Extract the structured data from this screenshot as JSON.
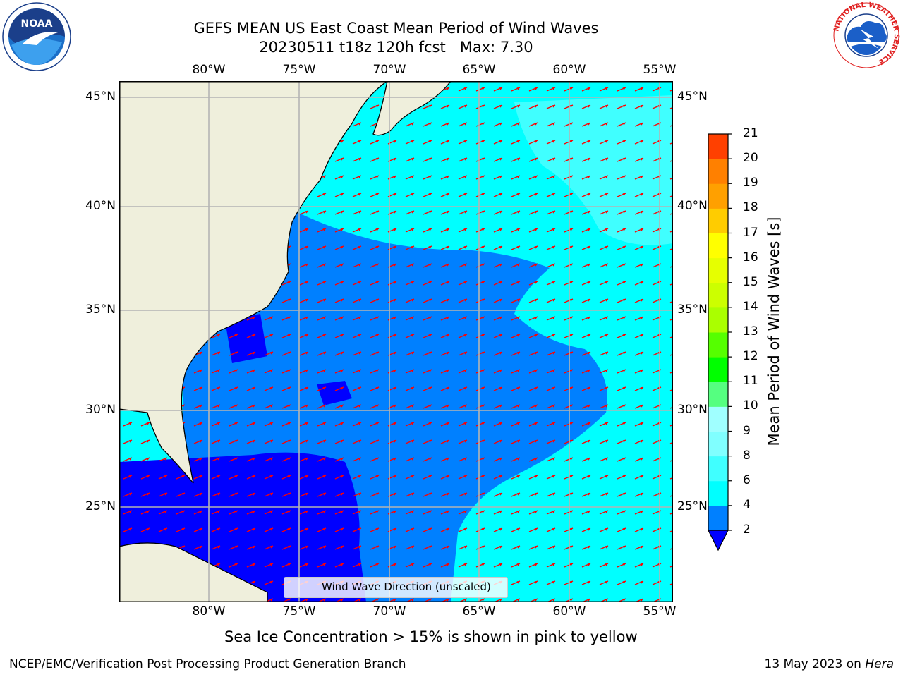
{
  "title": {
    "line1": "GEFS MEAN US East Coast Mean Period of Wind Waves",
    "line2": "20230511 t18z 120h fcst   Max: 7.30"
  },
  "map": {
    "lon_labels": [
      "80°W",
      "75°W",
      "70°W",
      "65°W",
      "60°W",
      "55°W"
    ],
    "lat_labels": [
      "45°N",
      "40°N",
      "35°N",
      "30°N",
      "25°N"
    ],
    "colors": {
      "land": "#efefdc",
      "ocean_low": "#0000ff",
      "ocean_mid": "#0080ff",
      "ocean_high": "#00ffff",
      "arrow": "#ff0000",
      "grid": "#b4b4b4"
    }
  },
  "legend": {
    "label": "Wind Wave Direction (unscaled)"
  },
  "colorbar": {
    "title": "Mean Period of Wind Waves [s]",
    "ticks": [
      "2",
      "4",
      "6",
      "8",
      "9",
      "10",
      "11",
      "12",
      "13",
      "14",
      "15",
      "16",
      "17",
      "18",
      "19",
      "20",
      "21"
    ],
    "colors": [
      "#0080ff",
      "#00ffff",
      "#40ffff",
      "#80ffff",
      "#a0ffff",
      "#55ff80",
      "#00ff00",
      "#55ff00",
      "#aaff00",
      "#ccff00",
      "#e6ff00",
      "#ffff00",
      "#ffcc00",
      "#ffa000",
      "#ff8000",
      "#ff4000",
      "#ff0000"
    ],
    "under_color": "#0000ff"
  },
  "note": "Sea Ice Concentration > 15% is shown in pink to yellow",
  "footer": {
    "left": "NCEP/EMC/Verification Post Processing Product Generation Branch",
    "date": "13 May 2023 on",
    "machine": "Hera"
  },
  "logos": {
    "left": "NOAA",
    "right_ring": "NATIONAL WEATHER SERVICE"
  }
}
